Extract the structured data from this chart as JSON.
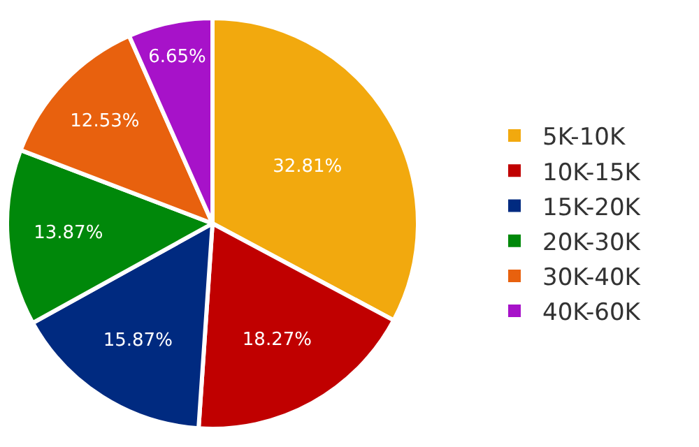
{
  "chart_data": {
    "type": "pie",
    "categories": [
      "5K-10K",
      "10K-15K",
      "15K-20K",
      "20K-30K",
      "30K-40K",
      "40K-60K"
    ],
    "values": [
      32.81,
      18.27,
      15.87,
      13.87,
      12.53,
      6.65
    ],
    "value_labels": [
      "32.81%",
      "18.27%",
      "15.87%",
      "13.87%",
      "12.53%",
      "6.65%"
    ],
    "colors": [
      "#f2a90e",
      "#c00000",
      "#002a80",
      "#00880a",
      "#e8610e",
      "#a712c9"
    ],
    "legend": "right"
  }
}
